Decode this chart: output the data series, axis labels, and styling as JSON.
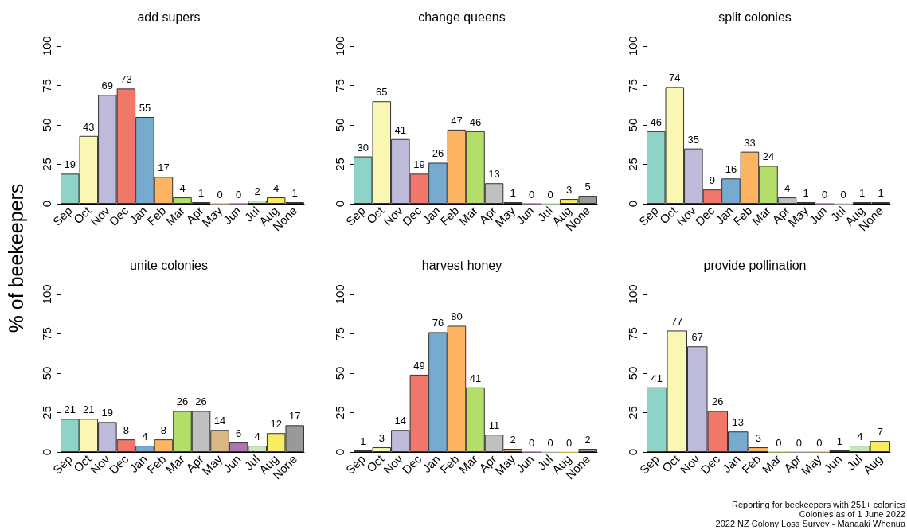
{
  "chart_data": [
    {
      "type": "bar",
      "title": "add supers",
      "ylabel": "% of beekeepers",
      "categories": [
        "Sep",
        "Oct",
        "Nov",
        "Dec",
        "Jan",
        "Feb",
        "Mar",
        "Apr",
        "May",
        "Jun",
        "Jul",
        "Aug",
        "None"
      ],
      "values": [
        19,
        43,
        69,
        73,
        55,
        17,
        4,
        1,
        0,
        0,
        2,
        4,
        1
      ],
      "colors": [
        "#8dd3c7",
        "#f9f7b3",
        "#bebada",
        "#f0776a",
        "#76aace",
        "#fdb462",
        "#b3de69",
        "#c0c0c0",
        "#d8b884",
        "#b075b0",
        "#c8e6c0",
        "#f8ec63",
        "#999999"
      ],
      "ylim": [
        0,
        108
      ],
      "yticks": [
        0,
        25,
        50,
        75,
        100
      ],
      "data_labels": true,
      "grid": false
    },
    {
      "type": "bar",
      "title": "change queens",
      "categories": [
        "Sep",
        "Oct",
        "Nov",
        "Dec",
        "Jan",
        "Feb",
        "Mar",
        "Apr",
        "May",
        "Jun",
        "Jul",
        "Aug",
        "None"
      ],
      "values": [
        30,
        65,
        41,
        19,
        26,
        47,
        46,
        13,
        1,
        0,
        0,
        3,
        5
      ],
      "colors": [
        "#8dd3c7",
        "#f9f7b3",
        "#bebada",
        "#f0776a",
        "#76aace",
        "#fdb462",
        "#b3de69",
        "#c0c0c0",
        "#d8b884",
        "#b075b0",
        "#c8e6c0",
        "#f8ec63",
        "#999999"
      ],
      "ylim": [
        0,
        108
      ],
      "yticks": [
        0,
        25,
        50,
        75,
        100
      ],
      "data_labels": true,
      "grid": false
    },
    {
      "type": "bar",
      "title": "split colonies",
      "categories": [
        "Sep",
        "Oct",
        "Nov",
        "Dec",
        "Jan",
        "Feb",
        "Mar",
        "Apr",
        "May",
        "Jun",
        "Jul",
        "Aug",
        "None"
      ],
      "values": [
        46,
        74,
        35,
        9,
        16,
        33,
        24,
        4,
        1,
        0,
        0,
        1,
        1
      ],
      "colors": [
        "#8dd3c7",
        "#f9f7b3",
        "#bebada",
        "#f0776a",
        "#76aace",
        "#fdb462",
        "#b3de69",
        "#c0c0c0",
        "#d8b884",
        "#b075b0",
        "#c8e6c0",
        "#f8ec63",
        "#999999"
      ],
      "ylim": [
        0,
        108
      ],
      "yticks": [
        0,
        25,
        50,
        75,
        100
      ],
      "data_labels": true,
      "grid": false
    },
    {
      "type": "bar",
      "title": "unite colonies",
      "categories": [
        "Sep",
        "Oct",
        "Nov",
        "Dec",
        "Jan",
        "Feb",
        "Mar",
        "Apr",
        "May",
        "Jun",
        "Jul",
        "Aug",
        "None"
      ],
      "values": [
        21,
        21,
        19,
        8,
        4,
        8,
        26,
        26,
        14,
        6,
        4,
        12,
        17
      ],
      "colors": [
        "#8dd3c7",
        "#f9f7b3",
        "#bebada",
        "#f0776a",
        "#76aace",
        "#fdb462",
        "#b3de69",
        "#c0c0c0",
        "#d8b884",
        "#b075b0",
        "#c8e6c0",
        "#f8ec63",
        "#999999"
      ],
      "ylim": [
        0,
        108
      ],
      "yticks": [
        0,
        25,
        50,
        75,
        100
      ],
      "data_labels": true,
      "grid": false
    },
    {
      "type": "bar",
      "title": "harvest honey",
      "categories": [
        "Sep",
        "Oct",
        "Nov",
        "Dec",
        "Jan",
        "Feb",
        "Mar",
        "Apr",
        "May",
        "Jun",
        "Jul",
        "Aug",
        "None"
      ],
      "values": [
        1,
        3,
        14,
        49,
        76,
        80,
        41,
        11,
        2,
        0,
        0,
        0,
        2
      ],
      "colors": [
        "#8dd3c7",
        "#f9f7b3",
        "#bebada",
        "#f0776a",
        "#76aace",
        "#fdb462",
        "#b3de69",
        "#c0c0c0",
        "#d8b884",
        "#b075b0",
        "#c8e6c0",
        "#f8ec63",
        "#999999"
      ],
      "ylim": [
        0,
        108
      ],
      "yticks": [
        0,
        25,
        50,
        75,
        100
      ],
      "data_labels": true,
      "grid": false
    },
    {
      "type": "bar",
      "title": "provide pollination",
      "categories": [
        "Sep",
        "Oct",
        "Nov",
        "Dec",
        "Jan",
        "Feb",
        "Mar",
        "Apr",
        "May",
        "Jun",
        "Jul",
        "Aug"
      ],
      "values": [
        41,
        77,
        67,
        26,
        13,
        3,
        0,
        0,
        0,
        1,
        4,
        7
      ],
      "colors": [
        "#8dd3c7",
        "#f9f7b3",
        "#bebada",
        "#f0776a",
        "#76aace",
        "#fdb462",
        "#b3de69",
        "#c0c0c0",
        "#d8b884",
        "#7b3f7b",
        "#c8e6c0",
        "#f8ec63"
      ],
      "ylim": [
        0,
        108
      ],
      "yticks": [
        0,
        25,
        50,
        75,
        100
      ],
      "data_labels": true,
      "grid": false,
      "annotations": [
        "Reporting for beekeepers with 251+ colonies",
        "Colonies as of 1 June 2022",
        "2022 NZ Colony Loss Survey - Manaaki Whenua"
      ]
    }
  ]
}
